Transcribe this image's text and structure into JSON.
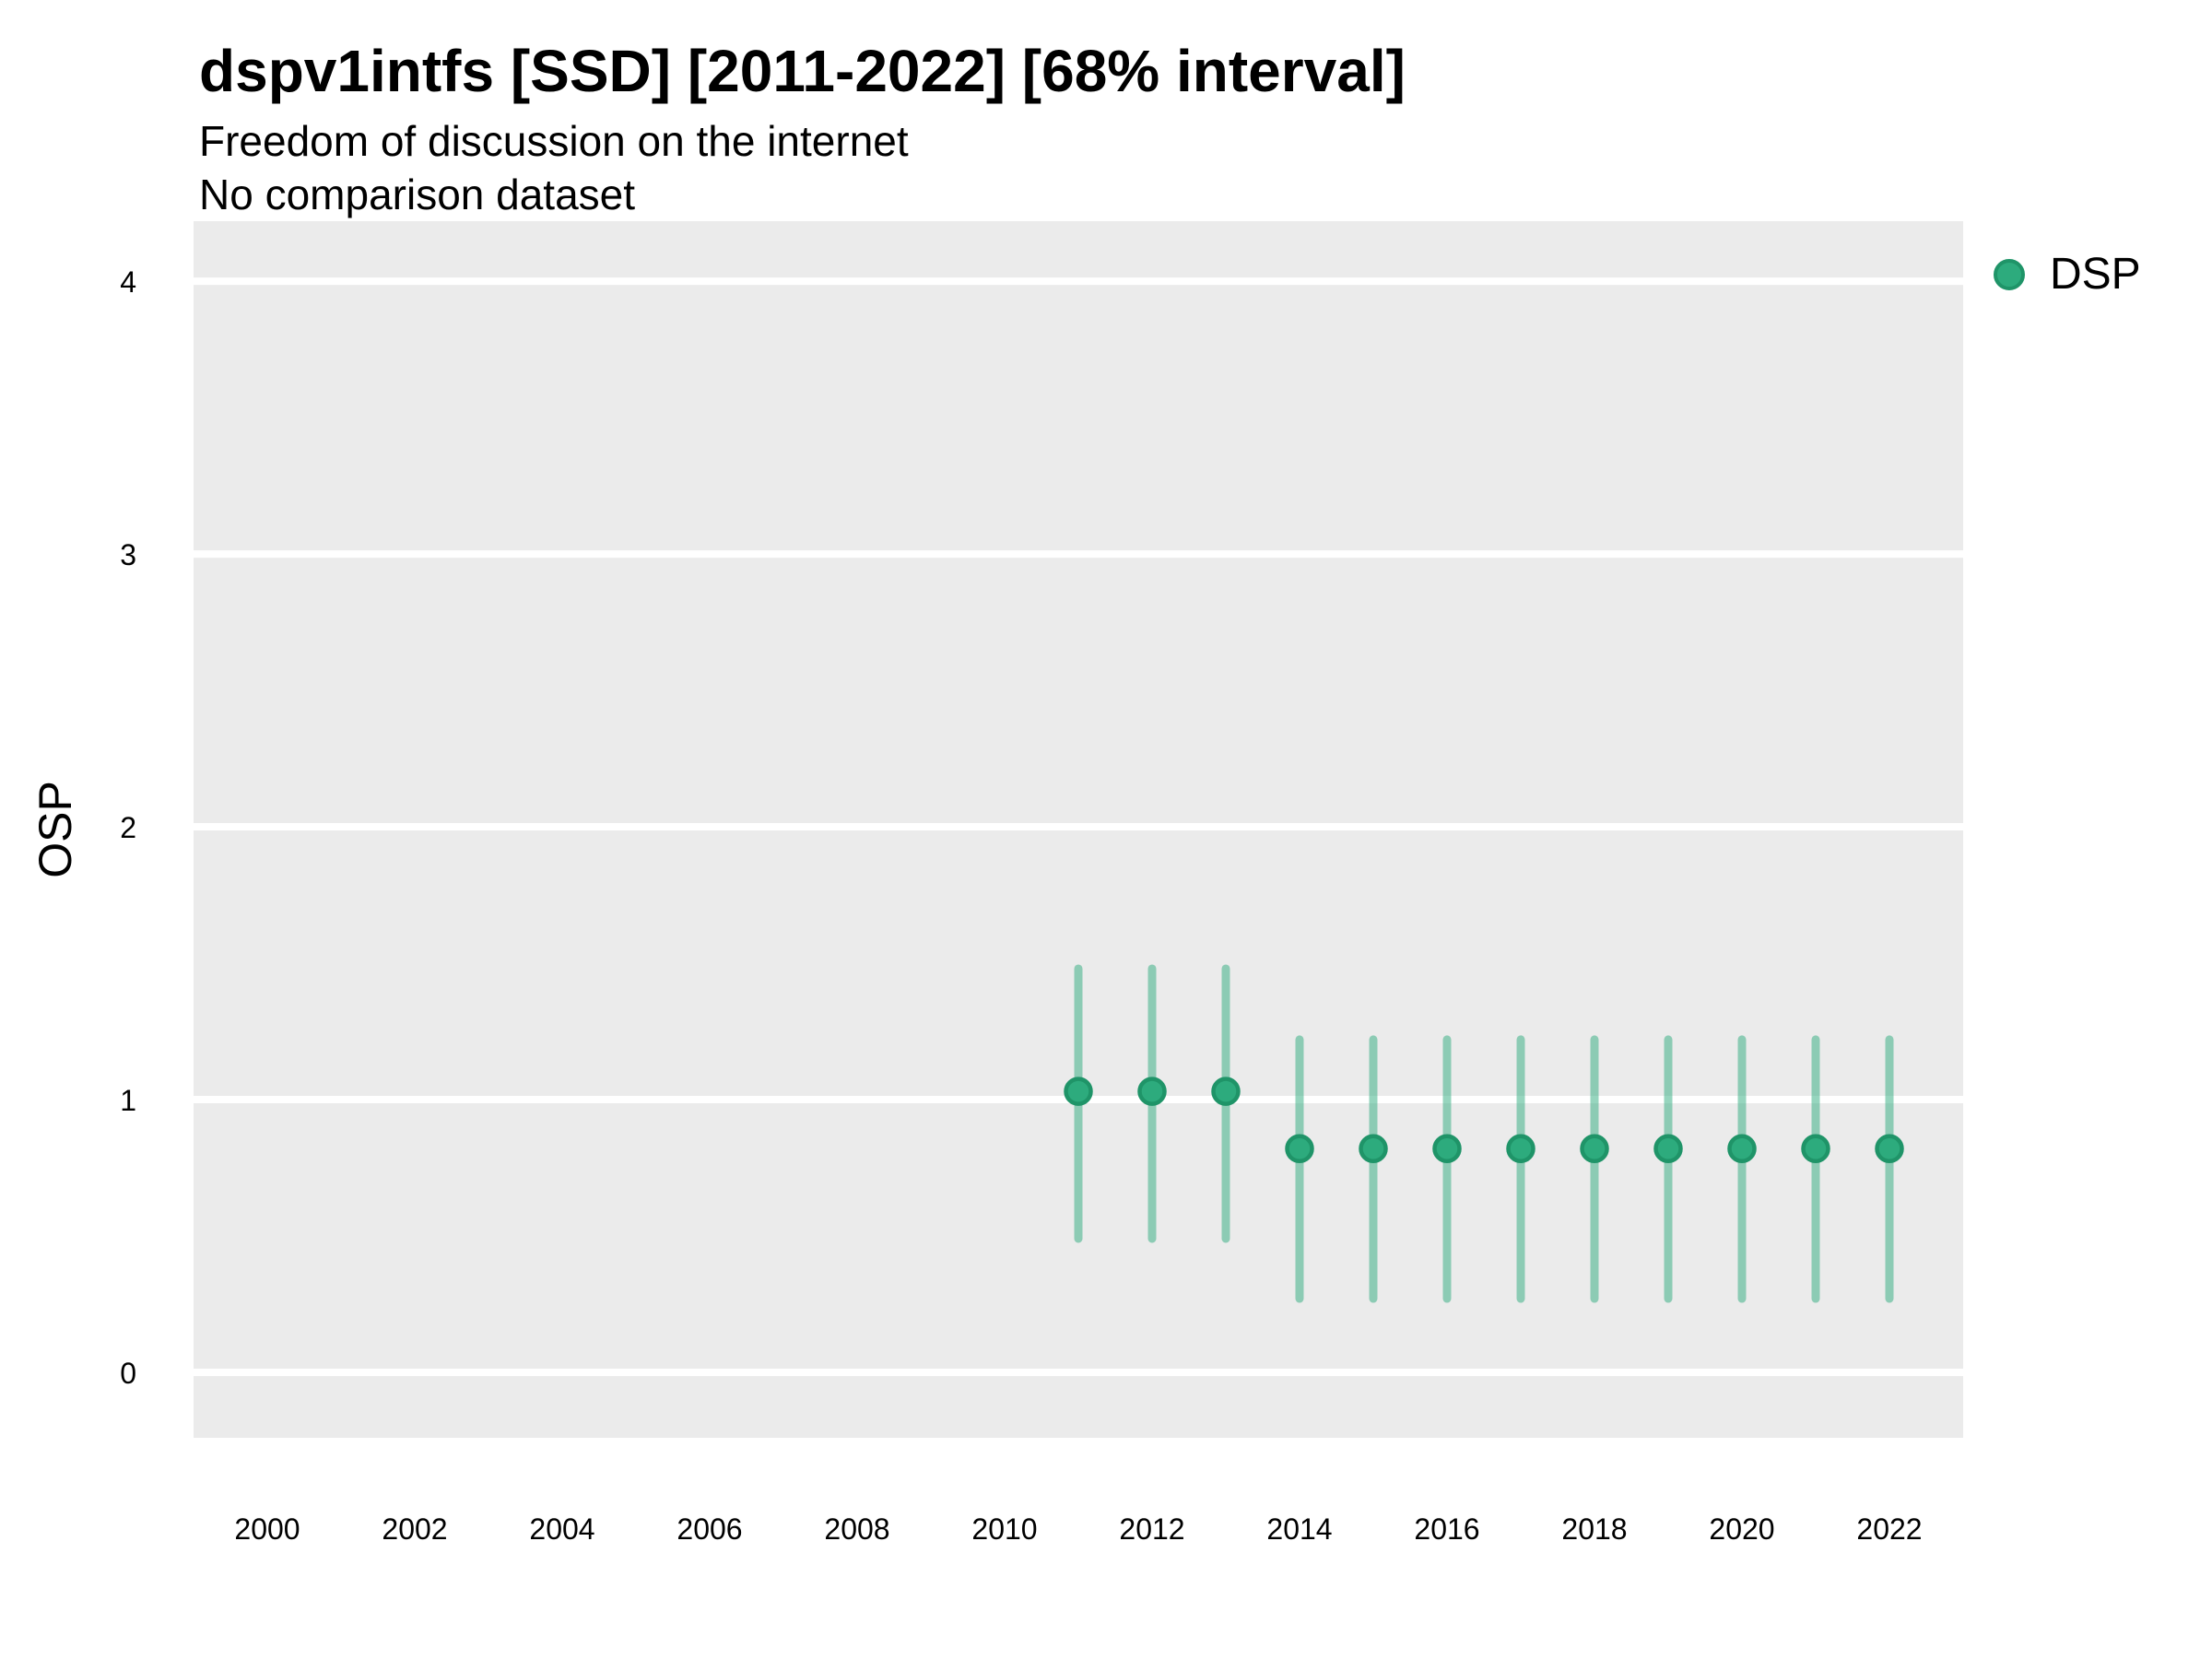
{
  "header": {
    "title": "dspv1intfs [SSD] [2011-2022] [68% interval]",
    "subtitle": "Freedom of discussion on the internet",
    "note": "No comparison dataset"
  },
  "colors": {
    "panel_background": "#ebebeb",
    "gridline": "#ffffff",
    "text": "#000000",
    "point_fill": "#2dab7d",
    "point_stroke": "#1f9468",
    "interval_bar": "rgba(45,171,125,0.5)"
  },
  "chart_data": {
    "type": "scatter",
    "title": "dspv1intfs [SSD] [2011-2022] [68% interval]",
    "subtitle": "Freedom of discussion on the internet",
    "note": "No comparison dataset",
    "xlabel": "",
    "ylabel": "OSP",
    "interval": "68%",
    "xlim": [
      1999,
      2023
    ],
    "ylim": [
      -0.24,
      4.22
    ],
    "x_ticks": [
      2000,
      2002,
      2004,
      2006,
      2008,
      2010,
      2012,
      2014,
      2016,
      2018,
      2020,
      2022
    ],
    "y_ticks": [
      0,
      1,
      2,
      3,
      4
    ],
    "grid": "horizontal-major-only",
    "legend_position": "right-top",
    "series": [
      {
        "name": "DSP",
        "color": "#2dab7d",
        "stroke": "#1f9468",
        "bar_color": "rgba(45,171,125,0.5)",
        "points": [
          {
            "x": 2011,
            "y": 1.03,
            "lo": 0.49,
            "hi": 1.48
          },
          {
            "x": 2012,
            "y": 1.03,
            "lo": 0.49,
            "hi": 1.48
          },
          {
            "x": 2013,
            "y": 1.03,
            "lo": 0.49,
            "hi": 1.48
          },
          {
            "x": 2014,
            "y": 0.82,
            "lo": 0.27,
            "hi": 1.22
          },
          {
            "x": 2015,
            "y": 0.82,
            "lo": 0.27,
            "hi": 1.22
          },
          {
            "x": 2016,
            "y": 0.82,
            "lo": 0.27,
            "hi": 1.22
          },
          {
            "x": 2017,
            "y": 0.82,
            "lo": 0.27,
            "hi": 1.22
          },
          {
            "x": 2018,
            "y": 0.82,
            "lo": 0.27,
            "hi": 1.22
          },
          {
            "x": 2019,
            "y": 0.82,
            "lo": 0.27,
            "hi": 1.22
          },
          {
            "x": 2020,
            "y": 0.82,
            "lo": 0.27,
            "hi": 1.22
          },
          {
            "x": 2021,
            "y": 0.82,
            "lo": 0.27,
            "hi": 1.22
          },
          {
            "x": 2022,
            "y": 0.82,
            "lo": 0.27,
            "hi": 1.22
          }
        ]
      }
    ]
  }
}
